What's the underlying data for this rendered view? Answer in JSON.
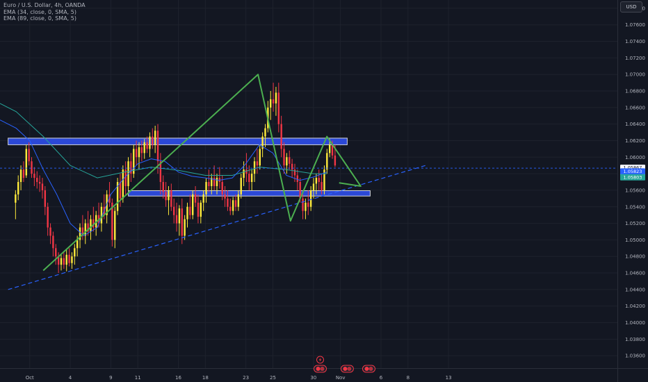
{
  "legend": {
    "symbol": "Euro / U.S. Dollar, 4h, OANDA",
    "ema1": "EMA (34, close, 0, SMA, 5)",
    "ema2": "EMA (89, close, 0, SMA, 5)"
  },
  "currency_label": "USD",
  "colors": {
    "background": "#131722",
    "up": "#ffeb3b",
    "down": "#f23645",
    "ema34": "#2962ff",
    "ema89": "#26a69a",
    "zone_fill": "#2c4be0",
    "pattern": "#4caf50",
    "trendline": "#2962ff",
    "text": "#b2b5be"
  },
  "price_tags": [
    {
      "price": 1.05867,
      "label": "1.05867",
      "sub": "01:41:31",
      "bg": "#f8f9fd",
      "fg": "#131722"
    },
    {
      "price": 1.05823,
      "label": "1.05823",
      "bg": "#2962ff",
      "fg": "#ffffff"
    },
    {
      "price": 1.05803,
      "label": "1.05803",
      "bg": "#26a69a",
      "fg": "#ffffff"
    }
  ],
  "chart_data": {
    "type": "candlestick",
    "y_range": [
      1.0345,
      1.079
    ],
    "y_ticks": [
      "1.07800",
      "1.07600",
      "1.07400",
      "1.07200",
      "1.07000",
      "1.06800",
      "1.06600",
      "1.06400",
      "1.06200",
      "1.06000",
      "1.05800",
      "1.05600",
      "1.05400",
      "1.05200",
      "1.05000",
      "1.04800",
      "1.04600",
      "1.04400",
      "1.04200",
      "1.04000",
      "1.03800",
      "1.03600"
    ],
    "x_range": [
      -1.2,
      44.5
    ],
    "x_ticks": [
      {
        "label": "Oct",
        "x": 1
      },
      {
        "label": "4",
        "x": 4
      },
      {
        "label": "9",
        "x": 7
      },
      {
        "label": "11",
        "x": 9
      },
      {
        "label": "16",
        "x": 12
      },
      {
        "label": "18",
        "x": 14
      },
      {
        "label": "23",
        "x": 17
      },
      {
        "label": "25",
        "x": 19
      },
      {
        "label": "30",
        "x": 22
      },
      {
        "label": "Nov",
        "x": 24
      },
      {
        "label": "6",
        "x": 27
      },
      {
        "label": "8",
        "x": 29
      },
      {
        "label": "13",
        "x": 32
      }
    ],
    "candles": [
      [
        1.0545,
        1.056,
        1.0525,
        1.0555
      ],
      [
        1.0555,
        1.0578,
        1.0548,
        1.057
      ],
      [
        1.057,
        1.059,
        1.056,
        1.0585
      ],
      [
        1.0585,
        1.0595,
        1.057,
        1.0575
      ],
      [
        1.0578,
        1.0615,
        1.0575,
        1.061
      ],
      [
        1.061,
        1.0618,
        1.059,
        1.0595
      ],
      [
        1.0595,
        1.06,
        1.0575,
        1.058
      ],
      [
        1.058,
        1.0588,
        1.0565,
        1.0575
      ],
      [
        1.0575,
        1.0583,
        1.0562,
        1.057
      ],
      [
        1.057,
        1.0578,
        1.0558,
        1.0568
      ],
      [
        1.0568,
        1.0575,
        1.055,
        1.056
      ],
      [
        1.056,
        1.0565,
        1.053,
        1.054
      ],
      [
        1.054,
        1.0545,
        1.0505,
        1.0515
      ],
      [
        1.0515,
        1.052,
        1.0495,
        1.0505
      ],
      [
        1.0505,
        1.051,
        1.048,
        1.049
      ],
      [
        1.049,
        1.0495,
        1.047,
        1.048
      ],
      [
        1.048,
        1.0485,
        1.046,
        1.047
      ],
      [
        1.047,
        1.0482,
        1.0463,
        1.0478
      ],
      [
        1.0478,
        1.0485,
        1.0465,
        1.047
      ],
      [
        1.047,
        1.0488,
        1.0462,
        1.0482
      ],
      [
        1.0482,
        1.049,
        1.0468,
        1.0472
      ],
      [
        1.0472,
        1.0485,
        1.0465,
        1.048
      ],
      [
        1.048,
        1.0495,
        1.047,
        1.049
      ],
      [
        1.049,
        1.0505,
        1.048,
        1.05
      ],
      [
        1.05,
        1.052,
        1.049,
        1.0515
      ],
      [
        1.0515,
        1.053,
        1.05,
        1.0505
      ],
      [
        1.0505,
        1.0525,
        1.0495,
        1.052
      ],
      [
        1.052,
        1.0535,
        1.0505,
        1.051
      ],
      [
        1.051,
        1.053,
        1.05,
        1.0525
      ],
      [
        1.0525,
        1.054,
        1.051,
        1.0515
      ],
      [
        1.0515,
        1.0535,
        1.0505,
        1.053
      ],
      [
        1.053,
        1.0545,
        1.0515,
        1.052
      ],
      [
        1.052,
        1.0545,
        1.051,
        1.054
      ],
      [
        1.054,
        1.0555,
        1.0525,
        1.053
      ],
      [
        1.053,
        1.056,
        1.052,
        1.0555
      ],
      [
        1.0555,
        1.057,
        1.054,
        1.0545
      ],
      [
        1.0545,
        1.055,
        1.0492,
        1.05
      ],
      [
        1.05,
        1.054,
        1.049,
        1.0535
      ],
      [
        1.0535,
        1.0575,
        1.053,
        1.057
      ],
      [
        1.057,
        1.058,
        1.054,
        1.055
      ],
      [
        1.055,
        1.059,
        1.0545,
        1.0585
      ],
      [
        1.0585,
        1.0595,
        1.0555,
        1.0565
      ],
      [
        1.0565,
        1.06,
        1.056,
        1.0595
      ],
      [
        1.0595,
        1.0605,
        1.057,
        1.058
      ],
      [
        1.058,
        1.0615,
        1.0575,
        1.061
      ],
      [
        1.061,
        1.062,
        1.059,
        1.06
      ],
      [
        1.06,
        1.0618,
        1.0585,
        1.0612
      ],
      [
        1.0612,
        1.062,
        1.0595,
        1.0605
      ],
      [
        1.0605,
        1.0622,
        1.0598,
        1.0618
      ],
      [
        1.0618,
        1.0625,
        1.0605,
        1.061
      ],
      [
        1.061,
        1.063,
        1.06,
        1.0625
      ],
      [
        1.0625,
        1.0635,
        1.061,
        1.0615
      ],
      [
        1.0615,
        1.0638,
        1.0605,
        1.0632
      ],
      [
        1.0632,
        1.064,
        1.058,
        1.0595
      ],
      [
        1.0595,
        1.0605,
        1.0555,
        1.057
      ],
      [
        1.057,
        1.0578,
        1.055,
        1.0558
      ],
      [
        1.0558,
        1.057,
        1.054,
        1.0548
      ],
      [
        1.0548,
        1.0565,
        1.053,
        1.056
      ],
      [
        1.056,
        1.0568,
        1.0535,
        1.054
      ],
      [
        1.054,
        1.055,
        1.052,
        1.053
      ],
      [
        1.053,
        1.0545,
        1.051,
        1.052
      ],
      [
        1.052,
        1.0542,
        1.0505,
        1.0538
      ],
      [
        1.0538,
        1.055,
        1.0495,
        1.0505
      ],
      [
        1.0505,
        1.053,
        1.05,
        1.0525
      ],
      [
        1.0525,
        1.0545,
        1.0515,
        1.054
      ],
      [
        1.054,
        1.0555,
        1.0525,
        1.053
      ],
      [
        1.053,
        1.056,
        1.0525,
        1.0555
      ],
      [
        1.0555,
        1.0565,
        1.054,
        1.0545
      ],
      [
        1.0545,
        1.0555,
        1.052,
        1.0528
      ],
      [
        1.0528,
        1.0548,
        1.052,
        1.0545
      ],
      [
        1.0545,
        1.056,
        1.0535,
        1.0555
      ],
      [
        1.0555,
        1.0575,
        1.0545,
        1.057
      ],
      [
        1.057,
        1.0585,
        1.0558,
        1.0565
      ],
      [
        1.0565,
        1.058,
        1.0555,
        1.0575
      ],
      [
        1.0575,
        1.059,
        1.056,
        1.0565
      ],
      [
        1.0565,
        1.058,
        1.0555,
        1.0575
      ],
      [
        1.0575,
        1.0588,
        1.0562,
        1.057
      ],
      [
        1.057,
        1.0578,
        1.0548,
        1.0555
      ],
      [
        1.0555,
        1.0565,
        1.054,
        1.055
      ],
      [
        1.055,
        1.056,
        1.0535,
        1.054
      ],
      [
        1.054,
        1.055,
        1.053,
        1.0535
      ],
      [
        1.0535,
        1.0552,
        1.053,
        1.0548
      ],
      [
        1.0548,
        1.0555,
        1.0535,
        1.054
      ],
      [
        1.054,
        1.056,
        1.0535,
        1.0555
      ],
      [
        1.0555,
        1.058,
        1.055,
        1.0575
      ],
      [
        1.0575,
        1.0595,
        1.0565,
        1.0585
      ],
      [
        1.0585,
        1.0605,
        1.057,
        1.058
      ],
      [
        1.058,
        1.059,
        1.056,
        1.057
      ],
      [
        1.057,
        1.0585,
        1.056,
        1.058
      ],
      [
        1.058,
        1.06,
        1.057,
        1.0595
      ],
      [
        1.0595,
        1.061,
        1.058,
        1.059
      ],
      [
        1.059,
        1.0615,
        1.0585,
        1.061
      ],
      [
        1.061,
        1.063,
        1.06,
        1.0625
      ],
      [
        1.0625,
        1.064,
        1.0612,
        1.0635
      ],
      [
        1.0635,
        1.0668,
        1.063,
        1.066
      ],
      [
        1.066,
        1.068,
        1.0645,
        1.067
      ],
      [
        1.067,
        1.069,
        1.0655,
        1.0665
      ],
      [
        1.0665,
        1.0685,
        1.065,
        1.0678
      ],
      [
        1.0678,
        1.069,
        1.063,
        1.064
      ],
      [
        1.064,
        1.065,
        1.06,
        1.061
      ],
      [
        1.061,
        1.0618,
        1.058,
        1.059
      ],
      [
        1.059,
        1.0605,
        1.058,
        1.06
      ],
      [
        1.06,
        1.0608,
        1.0585,
        1.0592
      ],
      [
        1.0592,
        1.0598,
        1.0575,
        1.0585
      ],
      [
        1.0585,
        1.0592,
        1.057,
        1.0578
      ],
      [
        1.0578,
        1.0585,
        1.056,
        1.057
      ],
      [
        1.057,
        1.0575,
        1.0545,
        1.055
      ],
      [
        1.055,
        1.0555,
        1.0525,
        1.0535
      ],
      [
        1.0535,
        1.055,
        1.0525,
        1.0545
      ],
      [
        1.0545,
        1.056,
        1.053,
        1.054
      ],
      [
        1.054,
        1.0565,
        1.0535,
        1.056
      ],
      [
        1.056,
        1.0575,
        1.055,
        1.0568
      ],
      [
        1.0568,
        1.058,
        1.0555,
        1.0575
      ],
      [
        1.0575,
        1.0585,
        1.056,
        1.057
      ],
      [
        1.057,
        1.058,
        1.0555,
        1.056
      ],
      [
        1.056,
        1.059,
        1.0555,
        1.0585
      ],
      [
        1.0585,
        1.061,
        1.058,
        1.0605
      ],
      [
        1.0605,
        1.0622,
        1.06,
        1.0615
      ],
      [
        1.0615,
        1.062,
        1.0598,
        1.0602
      ],
      [
        1.0602,
        1.0615,
        1.0588,
        1.059
      ]
    ],
    "ema34": [
      [
        -1.2,
        1.0645
      ],
      [
        0,
        1.0635
      ],
      [
        1,
        1.062
      ],
      [
        2,
        1.0585
      ],
      [
        3,
        1.0555
      ],
      [
        4,
        1.052
      ],
      [
        5,
        1.0505
      ],
      [
        6,
        1.0515
      ],
      [
        7,
        1.0555
      ],
      [
        8,
        1.0575
      ],
      [
        9,
        1.0592
      ],
      [
        10,
        1.0598
      ],
      [
        11,
        1.0595
      ],
      [
        12,
        1.0582
      ],
      [
        13,
        1.0577
      ],
      [
        14,
        1.0575
      ],
      [
        15,
        1.0572
      ],
      [
        16,
        1.0575
      ],
      [
        17,
        1.0592
      ],
      [
        18,
        1.0615
      ],
      [
        19,
        1.0605
      ],
      [
        20,
        1.0578
      ],
      [
        21,
        1.0572
      ],
      [
        22,
        1.0576
      ],
      [
        23,
        1.0582
      ]
    ],
    "ema89": [
      [
        -1.2,
        1.0665
      ],
      [
        0,
        1.0655
      ],
      [
        2,
        1.0625
      ],
      [
        4,
        1.059
      ],
      [
        6,
        1.0575
      ],
      [
        8,
        1.0582
      ],
      [
        10,
        1.0588
      ],
      [
        12,
        1.0584
      ],
      [
        14,
        1.0578
      ],
      [
        16,
        1.0578
      ],
      [
        18,
        1.0588
      ],
      [
        20,
        1.0585
      ],
      [
        22,
        1.058
      ],
      [
        23,
        1.058
      ]
    ],
    "zones": [
      {
        "from_x": -0.6,
        "to_x": 24.5,
        "top": 1.0623,
        "bottom": 1.0615
      },
      {
        "from_x": 8.3,
        "to_x": 26.2,
        "top": 1.05595,
        "bottom": 1.0553
      }
    ],
    "pattern_path": [
      [
        2.0,
        1.0463
      ],
      [
        17.9,
        1.07
      ],
      [
        20.3,
        1.0523
      ],
      [
        23.0,
        1.0625
      ],
      [
        25.5,
        1.0565
      ],
      [
        23.9,
        1.0569
      ]
    ],
    "trendline": [
      [
        -0.6,
        1.044
      ],
      [
        30.3,
        1.059
      ]
    ],
    "current_price": 1.05867,
    "event_icons": [
      {
        "x": 22.5
      },
      {
        "x": 24.5
      },
      {
        "x": 26.1
      }
    ]
  }
}
